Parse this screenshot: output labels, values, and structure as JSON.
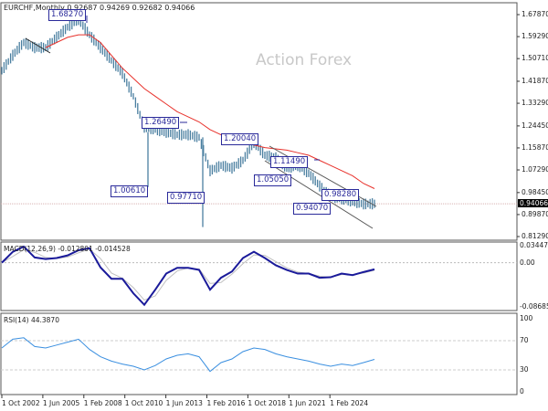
{
  "header": {
    "symbol_info": "EURCHF,Monthly  0.92687 0.94269 0.92682 0.94066"
  },
  "watermark": "Action Forex",
  "chart_data": [
    {
      "type": "line",
      "title": "EURCHF,Monthly",
      "ohlc_last": {
        "open": 0.92687,
        "high": 0.94269,
        "low": 0.92682,
        "close": 0.94066
      },
      "current_price_label": "0.94066",
      "x_tick_labels": [
        "1 Oct 2002",
        "1 Jun 2005",
        "1 Feb 2008",
        "1 Oct 2010",
        "1 Jun 2013",
        "1 Feb 2016",
        "1 Oct 2018",
        "1 Jun 2021",
        "1 Feb 2024"
      ],
      "y_tick_labels": [
        "1.67870",
        "1.59290",
        "1.50710",
        "1.41870",
        "1.33290",
        "1.24450",
        "1.15870",
        "1.07290",
        "0.98450",
        "0.89870",
        "0.81290"
      ],
      "ylim": [
        0.8129,
        1.6787
      ],
      "series": [
        {
          "color": "#4a7fa0",
          "values": [
            1.46,
            1.52,
            1.57,
            1.55,
            1.55,
            1.59,
            1.63,
            1.66,
            1.6,
            1.55,
            1.5,
            1.45,
            1.36,
            1.24,
            1.23,
            1.22,
            1.21,
            1.21,
            1.2,
            1.07,
            1.09,
            1.08,
            1.11,
            1.18,
            1.13,
            1.12,
            1.08,
            1.09,
            1.06,
            1.01,
            0.97,
            0.96,
            0.95,
            0.94,
            0.94066
          ]
        },
        {
          "color": "#e8312b",
          "values": [
            null,
            null,
            null,
            null,
            1.55,
            1.57,
            1.59,
            1.6,
            1.6,
            1.57,
            1.52,
            1.47,
            1.43,
            1.39,
            1.36,
            1.33,
            1.3,
            1.28,
            1.26,
            1.23,
            1.21,
            1.19,
            1.18,
            1.17,
            1.16,
            1.155,
            1.15,
            1.14,
            1.13,
            1.11,
            1.09,
            1.07,
            1.05,
            1.02,
            1.0
          ]
        }
      ],
      "annotations": [
        "1.68270",
        "1.26490",
        "1.00610",
        "0.97710",
        "1.20040",
        "1.11490",
        "1.05050",
        "0.98280",
        "0.94070"
      ]
    },
    {
      "type": "line",
      "title": "MACD(12,26,9) -0.012801 -0.014528",
      "ylim": [
        -0.086855,
        0.034473
      ],
      "y_tick_labels": [
        "0.034473",
        "0.00",
        "-0.086855"
      ],
      "series": [
        {
          "color": "#1a1a9a",
          "values": [
            0,
            0.021,
            0.031,
            0.01,
            0.007,
            0.009,
            0.014,
            0.024,
            0.028,
            -0.009,
            -0.031,
            -0.031,
            -0.059,
            -0.081,
            -0.052,
            -0.021,
            -0.01,
            -0.01,
            -0.014,
            -0.052,
            -0.029,
            -0.017,
            0.009,
            0.021,
            0.009,
            -0.005,
            -0.014,
            -0.021,
            -0.021,
            -0.029,
            -0.028,
            -0.021,
            -0.024,
            -0.018,
            -0.0128
          ]
        },
        {
          "color": "#c0c0c0",
          "values": [
            0,
            0.012,
            0.025,
            0.02,
            0.01,
            0.008,
            0.011,
            0.019,
            0.026,
            0.008,
            -0.02,
            -0.03,
            -0.048,
            -0.072,
            -0.064,
            -0.034,
            -0.016,
            -0.01,
            -0.012,
            -0.04,
            -0.038,
            -0.022,
            -0.002,
            0.015,
            0.014,
            0.002,
            -0.01,
            -0.018,
            -0.021,
            -0.026,
            -0.028,
            -0.023,
            -0.023,
            -0.02,
            -0.0145
          ]
        }
      ]
    },
    {
      "type": "line",
      "title": "RSI(14) 44.3870",
      "ylim": [
        0,
        100
      ],
      "y_tick_labels": [
        "100",
        "70",
        "30",
        "0"
      ],
      "series": [
        {
          "color": "#3a8fe0",
          "values": [
            60,
            72,
            74,
            62,
            60,
            64,
            68,
            72,
            58,
            48,
            42,
            38,
            35,
            30,
            36,
            45,
            50,
            52,
            48,
            28,
            40,
            45,
            55,
            60,
            58,
            52,
            48,
            45,
            42,
            38,
            35,
            38,
            36,
            40,
            44.387
          ]
        }
      ]
    }
  ]
}
